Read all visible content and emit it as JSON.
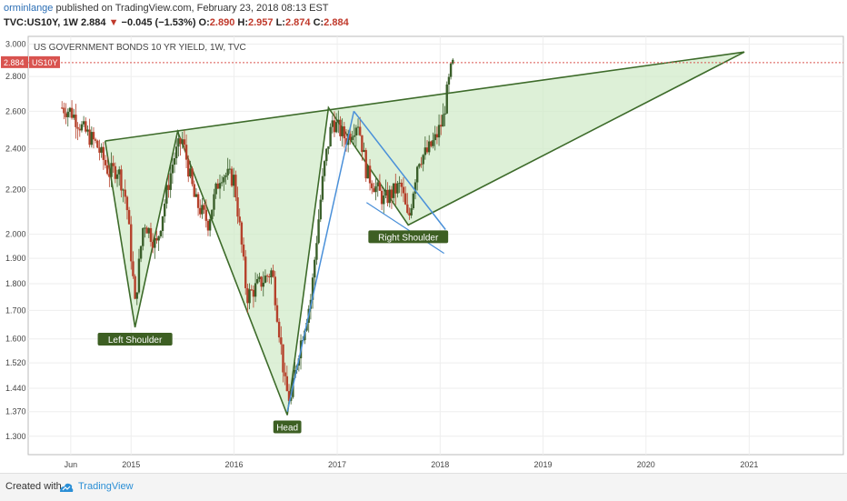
{
  "header": {
    "author": "orminlange",
    "published_text": "published on TradingView.com, February 23, 2018 08:13 EST",
    "symbol": "TVC:US10Y, 1W",
    "last": "2.884",
    "change": "−0.045 (−1.53%)",
    "o_label": "O:",
    "o_value": "2.890",
    "h_label": "H:",
    "h_value": "2.957",
    "l_label": "L:",
    "l_value": "2.874",
    "c_label": "C:",
    "c_value": "2.884"
  },
  "footer": {
    "created_with": "Created with",
    "brand": "TradingView"
  },
  "colors": {
    "bull": "#3a5f2a",
    "bear": "#b5412b",
    "pattern_fill": "#cfeac6",
    "pattern_stroke": "#3d6b2a",
    "trend": "#4a90d9",
    "price_line": "#d9534f",
    "label_bg": "#3d5f23"
  },
  "chart_data": {
    "type": "candlestick",
    "title": "US GOVERNMENT BONDS 10 YR YIELD, 1W, TVC",
    "y_scale": "log",
    "ylim": [
      1.25,
      3.05
    ],
    "y_ticks": [
      3.0,
      2.8,
      2.6,
      2.4,
      2.2,
      2.0,
      1.9,
      1.8,
      1.7,
      1.6,
      1.52,
      1.44,
      1.37,
      1.3
    ],
    "y_tick_labels": [
      "3.000",
      "2.800",
      "2.600",
      "2.400",
      "2.200",
      "2.000",
      "1.900",
      "1.800",
      "1.700",
      "1.600",
      "1.520",
      "1.440",
      "1.370",
      "1.300"
    ],
    "xlim": [
      "2014-01-01",
      "2021-12-01"
    ],
    "x_ticks": [
      {
        "date": "2014-06-01",
        "label": "Jun"
      },
      {
        "date": "2015-01-01",
        "label": "2015"
      },
      {
        "date": "2016-01-01",
        "label": "2016"
      },
      {
        "date": "2017-01-01",
        "label": "2017"
      },
      {
        "date": "2018-01-01",
        "label": "2018"
      },
      {
        "date": "2019-01-01",
        "label": "2019"
      },
      {
        "date": "2020-01-01",
        "label": "2020"
      },
      {
        "date": "2021-01-01",
        "label": "2021"
      }
    ],
    "grid": true,
    "last_price": {
      "value": 2.884,
      "label": "2.884",
      "symbol": "US10Y"
    },
    "close_path": [
      [
        "2014-05-01",
        2.62
      ],
      [
        "2014-06-01",
        2.6
      ],
      [
        "2014-07-15",
        2.5
      ],
      [
        "2014-09-01",
        2.42
      ],
      [
        "2014-10-15",
        2.28
      ],
      [
        "2014-11-15",
        2.3
      ],
      [
        "2014-12-15",
        2.15
      ],
      [
        "2015-01-15",
        1.72
      ],
      [
        "2015-02-15",
        2.06
      ],
      [
        "2015-04-01",
        1.95
      ],
      [
        "2015-06-01",
        2.35
      ],
      [
        "2015-07-01",
        2.45
      ],
      [
        "2015-08-15",
        2.15
      ],
      [
        "2015-10-01",
        2.05
      ],
      [
        "2015-11-15",
        2.28
      ],
      [
        "2016-01-01",
        2.25
      ],
      [
        "2016-02-15",
        1.75
      ],
      [
        "2016-04-01",
        1.8
      ],
      [
        "2016-05-15",
        1.85
      ],
      [
        "2016-07-01",
        1.44
      ],
      [
        "2016-07-20",
        1.4
      ],
      [
        "2016-08-15",
        1.55
      ],
      [
        "2016-10-01",
        1.75
      ],
      [
        "2016-11-15",
        2.3
      ],
      [
        "2016-12-15",
        2.55
      ],
      [
        "2017-02-01",
        2.45
      ],
      [
        "2017-03-15",
        2.55
      ],
      [
        "2017-04-15",
        2.28
      ],
      [
        "2017-06-15",
        2.15
      ],
      [
        "2017-08-15",
        2.22
      ],
      [
        "2017-09-10",
        2.05
      ],
      [
        "2017-10-15",
        2.35
      ],
      [
        "2017-11-15",
        2.38
      ],
      [
        "2017-12-15",
        2.45
      ],
      [
        "2018-01-10",
        2.55
      ],
      [
        "2018-01-25",
        2.7
      ],
      [
        "2018-02-10",
        2.85
      ],
      [
        "2018-02-20",
        2.884
      ]
    ],
    "pattern": {
      "name": "inverse head and shoulders",
      "points": [
        {
          "label": "left_neck",
          "date": "2014-10-01",
          "value": 2.44
        },
        {
          "label": "Left Shoulder",
          "date": "2015-01-15",
          "value": 1.64
        },
        {
          "label": "mid_neck",
          "date": "2015-06-15",
          "value": 2.49
        },
        {
          "label": "Head",
          "date": "2016-07-08",
          "value": 1.36
        },
        {
          "label": "right_neck",
          "date": "2016-12-01",
          "value": 2.62
        },
        {
          "label": "Right Shoulder",
          "date": "2017-09-10",
          "value": 2.04
        },
        {
          "label": "target",
          "date": "2020-12-15",
          "value": 2.95
        }
      ]
    },
    "annotations": [
      "Left Shoulder",
      "Head",
      "Right Shoulder"
    ]
  }
}
